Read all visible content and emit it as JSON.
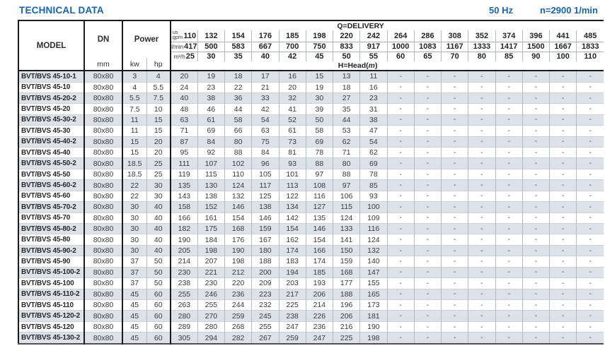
{
  "page": {
    "title": "TECHNICAL DATA",
    "frequency": "50 Hz",
    "speed": "n=2900 1/min"
  },
  "colors": {
    "accent_blue": "#1763ae",
    "row_stripe": "#dce2e8",
    "border_heavy": "#1b1b1d",
    "border_light": "#b3bac0"
  },
  "table": {
    "headers": {
      "model": "MODEL",
      "dn": "DN",
      "dn_unit": "mm",
      "power": "Power",
      "power_units": [
        "kw",
        "hp"
      ],
      "delivery_label": "Q=DELIVERY",
      "head_prefix": "H=Head(",
      "head_unit": "m",
      "head_suffix": ")",
      "gpm_label_top": "us",
      "gpm_label": "gpm",
      "lmin_label": "l/min",
      "m3h_label": "m³/h",
      "gpm": [
        "110",
        "132",
        "154",
        "176",
        "185",
        "198",
        "220",
        "242",
        "264",
        "286",
        "308",
        "352",
        "374",
        "396",
        "441",
        "485"
      ],
      "lmin": [
        "417",
        "500",
        "583",
        "667",
        "700",
        "750",
        "833",
        "917",
        "1000",
        "1083",
        "1167",
        "1333",
        "1417",
        "1500",
        "1667",
        "1833"
      ],
      "m3h": [
        "25",
        "30",
        "35",
        "40",
        "42",
        "45",
        "50",
        "55",
        "60",
        "65",
        "70",
        "80",
        "85",
        "90",
        "100",
        "110"
      ]
    },
    "rows": [
      {
        "model": "BVT/BVS 45-10-1",
        "dn": "80x80",
        "kw": "3",
        "hp": "4",
        "heads": [
          "20",
          "19",
          "18",
          "17",
          "16",
          "15",
          "13",
          "11",
          "-",
          "-",
          "-",
          "-",
          "-",
          "-",
          "-",
          "-"
        ]
      },
      {
        "model": "BVT/BVS 45-10",
        "dn": "80x80",
        "kw": "4",
        "hp": "5.5",
        "heads": [
          "24",
          "23",
          "22",
          "21",
          "20",
          "19",
          "18",
          "16",
          "-",
          "-",
          "-",
          "-",
          "-",
          "-",
          "-",
          "-"
        ]
      },
      {
        "model": "BVT/BVS 45-20-2",
        "dn": "80x80",
        "kw": "5.5",
        "hp": "7.5",
        "heads": [
          "40",
          "38",
          "36",
          "33",
          "32",
          "30",
          "27",
          "23",
          "-",
          "-",
          "-",
          "-",
          "-",
          "-",
          "-",
          "-"
        ]
      },
      {
        "model": "BVT/BVS 45-20",
        "dn": "80x80",
        "kw": "7.5",
        "hp": "10",
        "heads": [
          "48",
          "46",
          "44",
          "42",
          "41",
          "39",
          "35",
          "31",
          "-",
          "-",
          "-",
          "-",
          "-",
          "-",
          "-",
          "-"
        ]
      },
      {
        "model": "BVT/BVS 45-30-2",
        "dn": "80x80",
        "kw": "11",
        "hp": "15",
        "heads": [
          "63",
          "61",
          "58",
          "54",
          "52",
          "50",
          "44",
          "38",
          "-",
          "-",
          "-",
          "-",
          "-",
          "-",
          "-",
          "-"
        ]
      },
      {
        "model": "BVT/BVS 45-30",
        "dn": "80x80",
        "kw": "11",
        "hp": "15",
        "heads": [
          "71",
          "69",
          "66",
          "63",
          "61",
          "58",
          "53",
          "47",
          "-",
          "-",
          "-",
          "-",
          "-",
          "-",
          "-",
          "-"
        ]
      },
      {
        "model": "BVT/BVS 45-40-2",
        "dn": "80x80",
        "kw": "15",
        "hp": "20",
        "heads": [
          "87",
          "84",
          "80",
          "75",
          "73",
          "69",
          "62",
          "54",
          "-",
          "-",
          "-",
          "-",
          "-",
          "-",
          "-",
          "-"
        ]
      },
      {
        "model": "BVT/BVS 45-40",
        "dn": "80x80",
        "kw": "15",
        "hp": "20",
        "heads": [
          "95",
          "92",
          "88",
          "84",
          "81",
          "78",
          "71",
          "62",
          "-",
          "-",
          "-",
          "-",
          "-",
          "-",
          "-",
          "-"
        ]
      },
      {
        "model": "BVT/BVS 45-50-2",
        "dn": "80x80",
        "kw": "18.5",
        "hp": "25",
        "heads": [
          "111",
          "107",
          "102",
          "96",
          "93",
          "88",
          "80",
          "69",
          "-",
          "-",
          "-",
          "-",
          "-",
          "-",
          "-",
          "-"
        ]
      },
      {
        "model": "BVT/BVS 45-50",
        "dn": "80x80",
        "kw": "18.5",
        "hp": "25",
        "heads": [
          "119",
          "115",
          "110",
          "105",
          "101",
          "97",
          "88",
          "78",
          "-",
          "-",
          "-",
          "-",
          "-",
          "-",
          "-",
          "-"
        ]
      },
      {
        "model": "BVT/BVS 45-60-2",
        "dn": "80x80",
        "kw": "22",
        "hp": "30",
        "heads": [
          "135",
          "130",
          "124",
          "117",
          "113",
          "108",
          "97",
          "85",
          "-",
          "-",
          "-",
          "-",
          "-",
          "-",
          "-",
          "-"
        ]
      },
      {
        "model": "BVT/BVS 45-60",
        "dn": "80x80",
        "kw": "22",
        "hp": "30",
        "heads": [
          "143",
          "138",
          "132",
          "125",
          "122",
          "116",
          "106",
          "93",
          "-",
          "-",
          "-",
          "-",
          "-",
          "-",
          "-",
          "-"
        ]
      },
      {
        "model": "BVT/BVS 45-70-2",
        "dn": "80x80",
        "kw": "30",
        "hp": "40",
        "heads": [
          "158",
          "152",
          "146",
          "138",
          "134",
          "127",
          "115",
          "100",
          "-",
          "-",
          "-",
          "-",
          "-",
          "-",
          "-",
          "-"
        ]
      },
      {
        "model": "BVT/BVS 45-70",
        "dn": "80x80",
        "kw": "30",
        "hp": "40",
        "heads": [
          "166",
          "161",
          "154",
          "146",
          "142",
          "135",
          "124",
          "109",
          "-",
          "-",
          "-",
          "-",
          "-",
          "-",
          "-",
          "-"
        ]
      },
      {
        "model": "BVT/BVS 45-80-2",
        "dn": "80x80",
        "kw": "30",
        "hp": "40",
        "heads": [
          "182",
          "175",
          "168",
          "159",
          "154",
          "146",
          "133",
          "116",
          "-",
          "-",
          "-",
          "-",
          "-",
          "-",
          "-",
          "-"
        ]
      },
      {
        "model": "BVT/BVS 45-80",
        "dn": "80x80",
        "kw": "30",
        "hp": "40",
        "heads": [
          "190",
          "184",
          "176",
          "167",
          "162",
          "154",
          "141",
          "124",
          "-",
          "-",
          "-",
          "-",
          "-",
          "-",
          "-",
          "-"
        ]
      },
      {
        "model": "BVT/BVS 45-90-2",
        "dn": "80x80",
        "kw": "30",
        "hp": "40",
        "heads": [
          "205",
          "198",
          "190",
          "180",
          "174",
          "166",
          "150",
          "132",
          "-",
          "-",
          "-",
          "-",
          "-",
          "-",
          "-",
          "-"
        ]
      },
      {
        "model": "BVT/BVS 45-90",
        "dn": "80x80",
        "kw": "37",
        "hp": "50",
        "heads": [
          "214",
          "207",
          "198",
          "188",
          "183",
          "174",
          "159",
          "140",
          "-",
          "-",
          "-",
          "-",
          "-",
          "-",
          "-",
          "-"
        ]
      },
      {
        "model": "BVT/BVS 45-100-2",
        "dn": "80x80",
        "kw": "37",
        "hp": "50",
        "heads": [
          "230",
          "221",
          "212",
          "200",
          "194",
          "185",
          "168",
          "147",
          "-",
          "-",
          "-",
          "-",
          "-",
          "-",
          "-",
          "-"
        ]
      },
      {
        "model": "BVT/BVS 45-100",
        "dn": "80x80",
        "kw": "37",
        "hp": "50",
        "heads": [
          "238",
          "230",
          "220",
          "209",
          "203",
          "193",
          "177",
          "155",
          "-",
          "-",
          "-",
          "-",
          "-",
          "-",
          "-",
          "-"
        ]
      },
      {
        "model": "BVT/BVS 45-110-2",
        "dn": "80x80",
        "kw": "45",
        "hp": "60",
        "heads": [
          "255",
          "246",
          "236",
          "223",
          "217",
          "206",
          "188",
          "165",
          "-",
          "-",
          "-",
          "-",
          "-",
          "-",
          "-",
          "-"
        ]
      },
      {
        "model": "BVT/BVS 45-110",
        "dn": "80x80",
        "kw": "45",
        "hp": "60",
        "heads": [
          "263",
          "255",
          "244",
          "232",
          "225",
          "214",
          "196",
          "173",
          "-",
          "-",
          "-",
          "-",
          "-",
          "-",
          "-",
          "-"
        ]
      },
      {
        "model": "BVT/BVS 45-120-2",
        "dn": "80x80",
        "kw": "45",
        "hp": "60",
        "heads": [
          "280",
          "270",
          "259",
          "245",
          "238",
          "226",
          "206",
          "181",
          "-",
          "-",
          "-",
          "-",
          "-",
          "-",
          "-",
          "-"
        ]
      },
      {
        "model": "BVT/BVS 45-120",
        "dn": "80x80",
        "kw": "45",
        "hp": "60",
        "heads": [
          "289",
          "280",
          "268",
          "255",
          "247",
          "236",
          "216",
          "190",
          "-",
          "-",
          "-",
          "-",
          "-",
          "-",
          "-",
          "-"
        ]
      },
      {
        "model": "BVT/BVS 45-130-2",
        "dn": "80x80",
        "kw": "45",
        "hp": "60",
        "heads": [
          "305",
          "294",
          "282",
          "267",
          "259",
          "247",
          "225",
          "198",
          "-",
          "-",
          "-",
          "-",
          "-",
          "-",
          "-",
          "-"
        ]
      }
    ]
  }
}
